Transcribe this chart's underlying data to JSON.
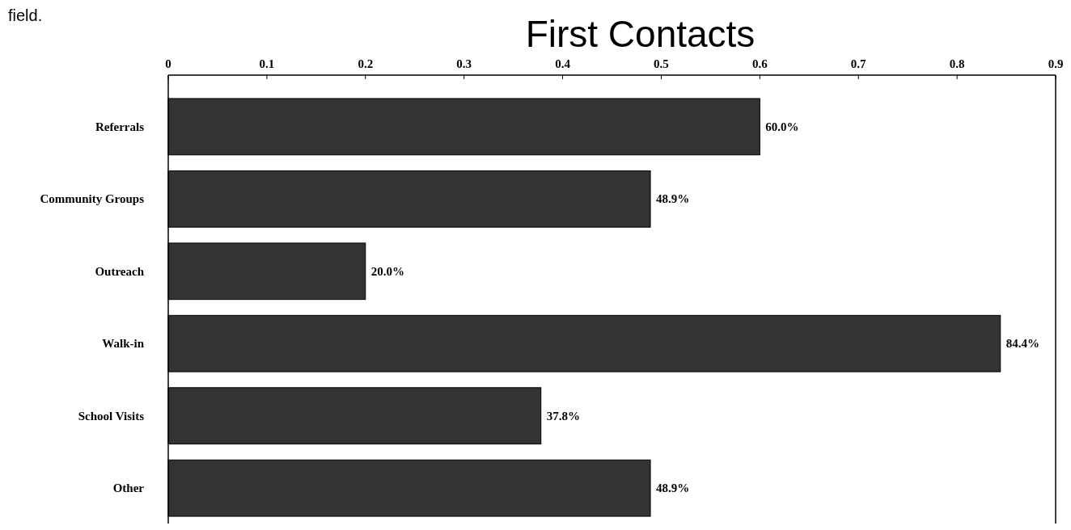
{
  "chart_data": {
    "type": "bar",
    "orientation": "horizontal",
    "title": "First Contacts",
    "annotations": [
      "field."
    ],
    "categories": [
      "Referrals",
      "Community Groups",
      "Outreach",
      "Walk-in",
      "School Visits",
      "Other"
    ],
    "values": [
      0.6,
      0.489,
      0.2,
      0.844,
      0.378,
      0.489
    ],
    "value_labels": [
      "60.0%",
      "48.9%",
      "20.0%",
      "84.4%",
      "37.8%",
      "48.9%"
    ],
    "color": "#333333",
    "xlim": [
      0,
      0.9
    ],
    "xticks": [
      0,
      0.1,
      0.2,
      0.3,
      0.4,
      0.5,
      0.6,
      0.7,
      0.8,
      0.9
    ],
    "grid": false
  }
}
